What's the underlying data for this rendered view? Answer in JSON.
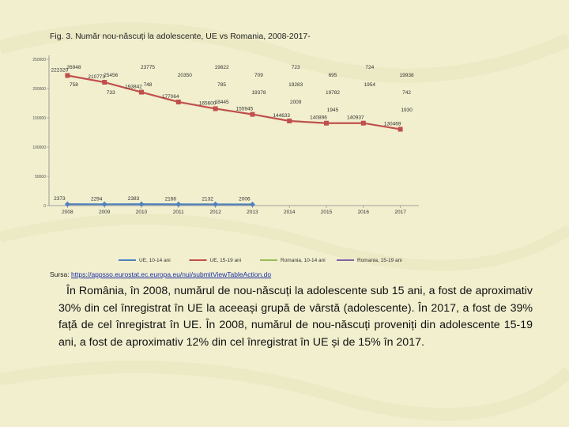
{
  "figure": {
    "title": "Fig. 3. Număr nou-născuți la adolescente, UE vs Romania, 2008-2017-"
  },
  "source": {
    "prefix": "Sursa: ",
    "link_text": "https://appsso.eurostat.ec.europa.eu/nui/submitViewTableAction.do"
  },
  "paragraph": "În România, în 2008, numărul de nou-născuți la adolescente sub 15 ani, a fost de aproximativ 30% din cel înregistrat în UE la aceeași grupă de vârstă (adolescente). În 2017, a fost de 39% față de cel înregistrat în UE. În 2008, numărul de nou-născuți proveniți din adolescente 15-19 ani, a fost de aproximativ 12% din cel înregistrat în UE și de 15% în 2017.",
  "colors": {
    "background": "#f1efce",
    "ue_10_14": "#4f81bd",
    "ue_15_19": "#c0504d",
    "ro_10_14": "#9bbb59",
    "ro_15_19": "#8064a2",
    "link": "#1a2fa8"
  },
  "chart_data": {
    "type": "line",
    "title": "Fig. 3. Număr nou-născuți la adolescente, UE vs Romania, 2008-2017-",
    "categories": [
      "2008",
      "2009",
      "2010",
      "2011",
      "2012",
      "2013",
      "2014",
      "2015",
      "2016",
      "2017"
    ],
    "ylim": [
      0,
      250000
    ],
    "yticks": [
      "0",
      "50000",
      "100000",
      "150000",
      "200000",
      "250000"
    ],
    "grid": false,
    "legend_position": "bottom",
    "series": [
      {
        "name": "UE, 10-14 ani",
        "values": [
          2373,
          2294,
          2383,
          2166,
          2132,
          2006,
          null,
          null,
          null,
          null
        ],
        "labels": [
          "2373",
          "2294",
          "2383",
          "2166",
          "2132",
          "2006",
          "",
          "",
          "",
          ""
        ]
      },
      {
        "name": "UE, 15-19 ani",
        "values": [
          222320,
          210773,
          193842,
          177064,
          165600,
          155945,
          144633,
          140896,
          140937,
          130469
        ],
        "labels": [
          "222320",
          "210773",
          "193842",
          "177064",
          "165600",
          "155945",
          "144633",
          "140896",
          "140937",
          "130469"
        ]
      },
      {
        "name": "Romania, 10-14 ani",
        "values": [
          null,
          null,
          null,
          null,
          null,
          null,
          null,
          null,
          null,
          null
        ],
        "labels": [
          "",
          "",
          "",
          "",
          "",
          "",
          "",
          "",
          "",
          ""
        ]
      },
      {
        "name": "Romania, 15-19 ani",
        "values": [
          null,
          null,
          null,
          null,
          null,
          null,
          null,
          null,
          null,
          null
        ],
        "labels": [
          "",
          "",
          "",
          "",
          "",
          "",
          "",
          "",
          "",
          ""
        ]
      }
    ],
    "extra_labels": [
      {
        "text": "26948",
        "near": "2008"
      },
      {
        "text": "25456",
        "near": "2009"
      },
      {
        "text": "758",
        "near": "2008"
      },
      {
        "text": "23775",
        "near": "2010"
      },
      {
        "text": "733",
        "near": "2009"
      },
      {
        "text": "20350",
        "near": "2011"
      },
      {
        "text": "748",
        "near": "2010"
      },
      {
        "text": "19822",
        "near": "2012"
      },
      {
        "text": "785",
        "near": "2012"
      },
      {
        "text": "18445",
        "near": "2012"
      },
      {
        "text": "709",
        "near": "2013"
      },
      {
        "text": "19378",
        "near": "2013"
      },
      {
        "text": "723",
        "near": "2014"
      },
      {
        "text": "19283",
        "near": "2014"
      },
      {
        "text": "695",
        "near": "2015"
      },
      {
        "text": "19782",
        "near": "2015"
      },
      {
        "text": "724",
        "near": "2016"
      },
      {
        "text": "19938",
        "near": "2017"
      },
      {
        "text": "742",
        "near": "2017"
      },
      {
        "text": "2009",
        "near": "2014"
      },
      {
        "text": "1945",
        "near": "2015"
      },
      {
        "text": "1954",
        "near": "2016"
      },
      {
        "text": "1930",
        "near": "2017"
      }
    ]
  }
}
